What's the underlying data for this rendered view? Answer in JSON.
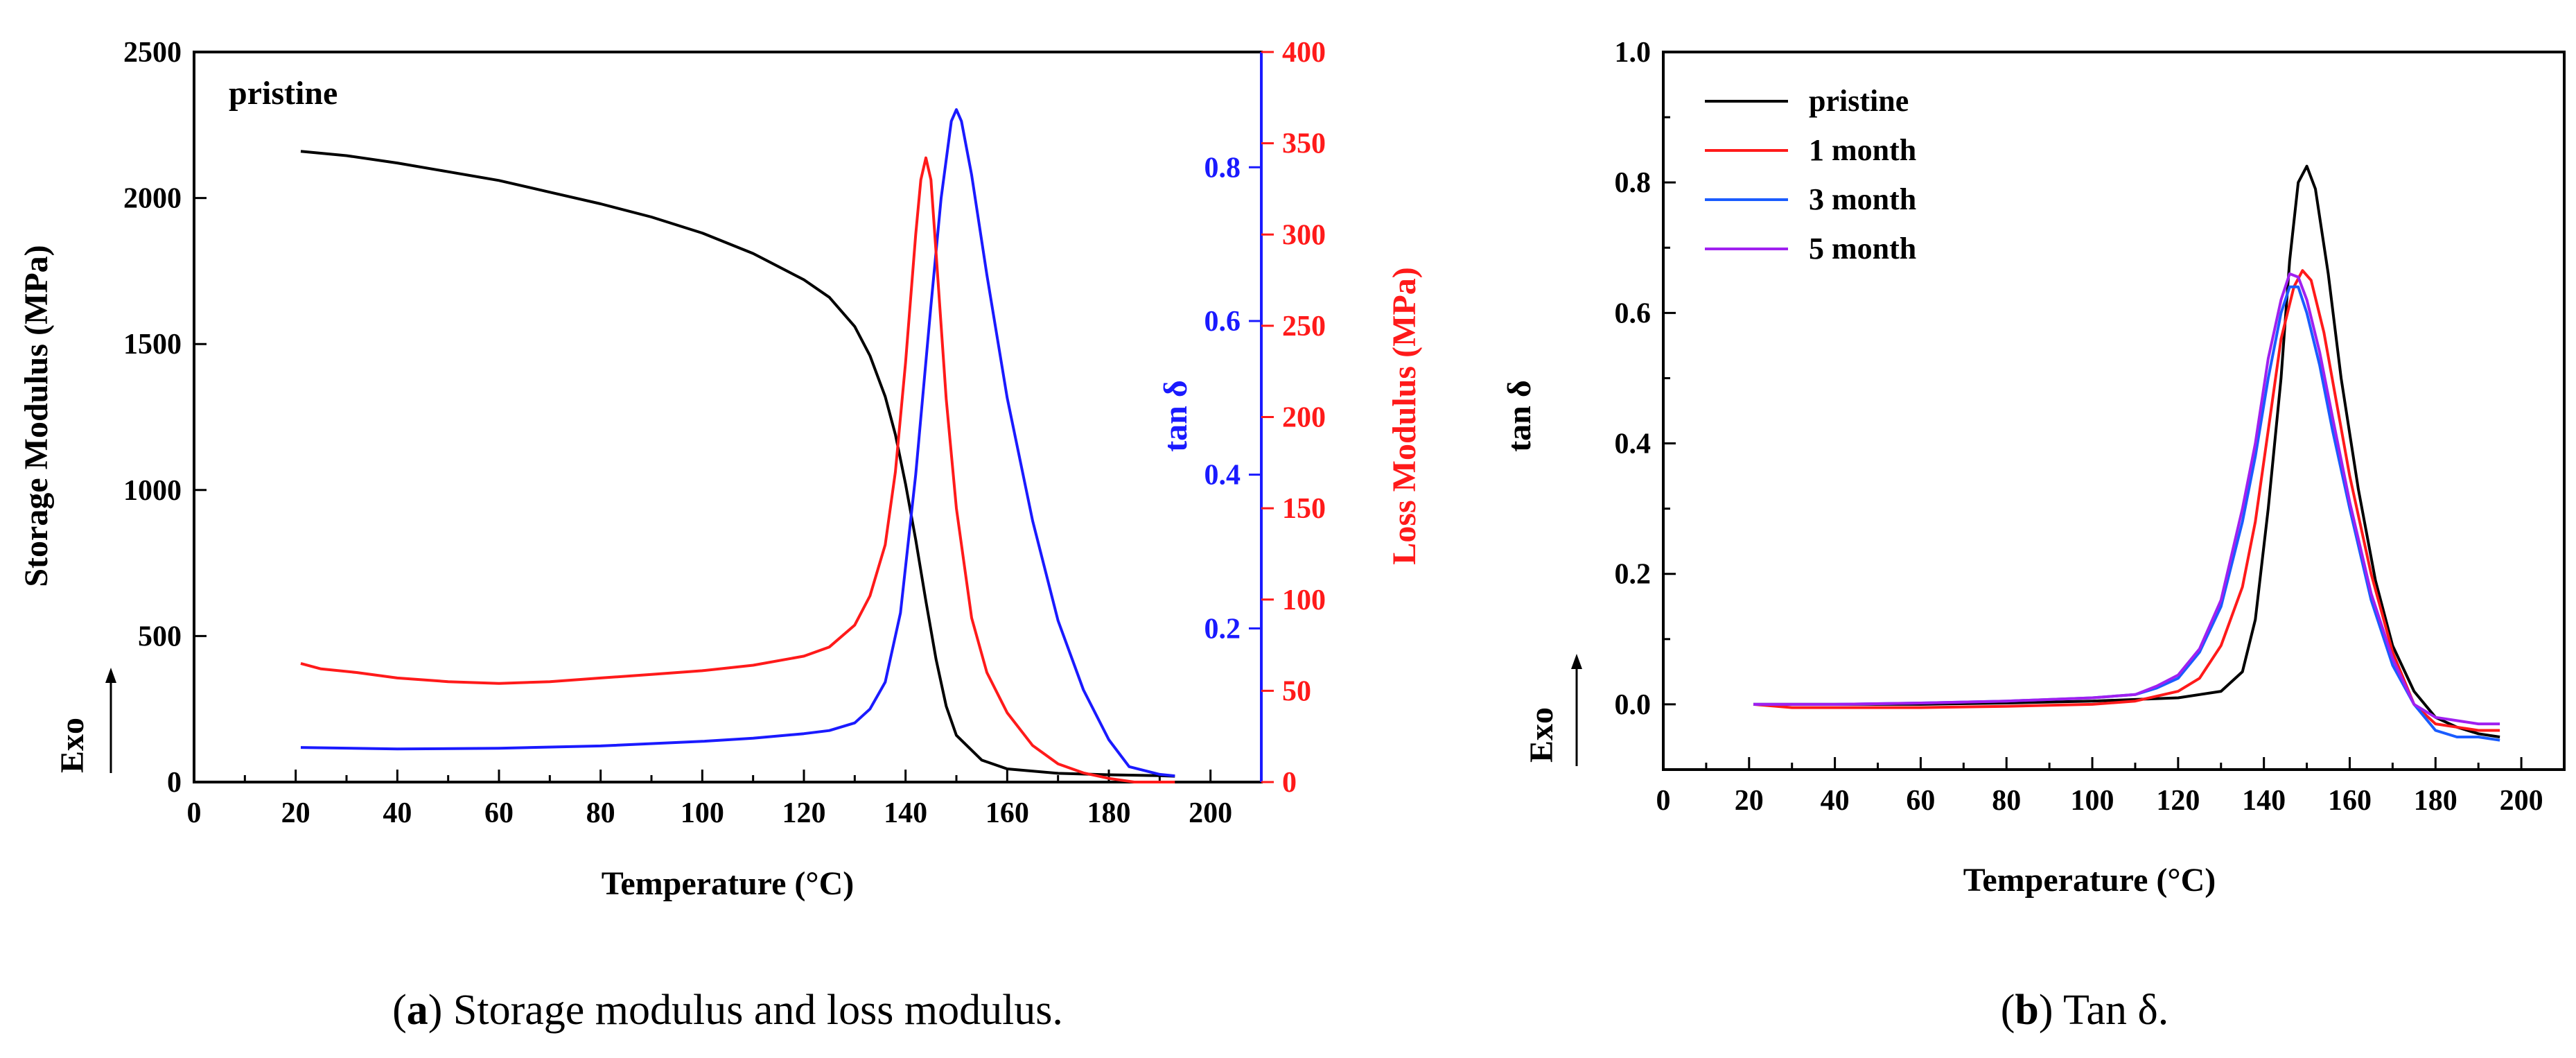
{
  "figure_captions": {
    "a": {
      "letter": "a",
      "text": "Storage modulus and loss modulus."
    },
    "b": {
      "letter": "b",
      "text": "Tan δ."
    }
  },
  "chart_data": [
    {
      "id": "a",
      "type": "line",
      "annotation": "pristine",
      "exo_label": "Exo",
      "xlabel": "Temperature (°C)",
      "ylabel_left": "Storage Modulus (MPa)",
      "ylabel_right_inner": "tan δ",
      "ylabel_right_outer": "Loss Modulus (MPa)",
      "xlim": [
        0,
        210
      ],
      "ylim_left": [
        0,
        2500
      ],
      "ylim_right_inner": [
        0,
        0.95
      ],
      "ylim_right_outer": [
        0,
        400
      ],
      "x_ticks": [
        "0",
        "20",
        "40",
        "60",
        "80",
        "100",
        "120",
        "140",
        "160",
        "180",
        "200"
      ],
      "y_left_ticks": [
        "0",
        "500",
        "1000",
        "1500",
        "2000",
        "2500"
      ],
      "y_tan_ticks": [
        "0.2",
        "0.4",
        "0.6",
        "0.8"
      ],
      "y_loss_ticks": [
        "0",
        "50",
        "100",
        "150",
        "200",
        "250",
        "300",
        "350",
        "400"
      ],
      "colors": {
        "storage": "#000000",
        "tan": "#1a1aff",
        "loss": "#ff1a1a"
      },
      "series": [
        {
          "key": "storage",
          "axis": "left",
          "x": [
            21,
            30,
            40,
            50,
            60,
            70,
            80,
            90,
            100,
            110,
            120,
            125,
            130,
            133,
            136,
            138,
            140,
            142,
            144,
            146,
            148,
            150,
            155,
            160,
            170,
            180,
            190,
            193
          ],
          "y": [
            2160,
            2145,
            2120,
            2090,
            2060,
            2020,
            1980,
            1935,
            1880,
            1810,
            1720,
            1660,
            1560,
            1460,
            1320,
            1190,
            1020,
            830,
            620,
            420,
            260,
            160,
            75,
            45,
            30,
            25,
            22,
            20
          ]
        },
        {
          "key": "tan",
          "axis": "right_inner",
          "x": [
            21,
            40,
            60,
            80,
            100,
            110,
            120,
            125,
            130,
            133,
            136,
            139,
            142,
            145,
            147,
            149,
            150,
            151,
            153,
            156,
            160,
            165,
            170,
            175,
            180,
            184,
            190,
            193
          ],
          "y": [
            0.045,
            0.043,
            0.044,
            0.047,
            0.053,
            0.057,
            0.063,
            0.067,
            0.077,
            0.095,
            0.13,
            0.22,
            0.4,
            0.62,
            0.76,
            0.86,
            0.875,
            0.86,
            0.79,
            0.66,
            0.5,
            0.34,
            0.21,
            0.12,
            0.055,
            0.02,
            0.01,
            0.008
          ]
        },
        {
          "key": "loss",
          "axis": "right_outer",
          "x": [
            21,
            25,
            32,
            40,
            50,
            60,
            70,
            80,
            90,
            100,
            110,
            120,
            125,
            130,
            133,
            136,
            138,
            140,
            142,
            143,
            144,
            145,
            146,
            148,
            150,
            153,
            156,
            160,
            165,
            170,
            175,
            180,
            185,
            190,
            193
          ],
          "y": [
            65,
            62,
            60,
            57,
            55,
            54,
            55,
            57,
            59,
            61,
            64,
            69,
            74,
            86,
            102,
            130,
            170,
            230,
            300,
            330,
            342,
            330,
            290,
            210,
            150,
            90,
            60,
            38,
            20,
            10,
            5,
            2,
            0,
            0,
            0
          ]
        }
      ]
    },
    {
      "id": "b",
      "type": "line",
      "exo_label": "Exo",
      "xlabel": "Temperature (°C)",
      "ylabel": "tan δ",
      "xlim": [
        0,
        210
      ],
      "ylim": [
        -0.1,
        1.0
      ],
      "x_ticks": [
        "0",
        "20",
        "40",
        "60",
        "80",
        "100",
        "120",
        "140",
        "160",
        "180",
        "200"
      ],
      "y_ticks": [
        "0.0",
        "0.2",
        "0.4",
        "0.6",
        "0.8",
        "1.0"
      ],
      "legend_position": "top-left",
      "series": [
        {
          "name": "pristine",
          "color": "#000000",
          "x": [
            21,
            40,
            60,
            80,
            100,
            120,
            130,
            135,
            138,
            141,
            144,
            146,
            148,
            150,
            152,
            155,
            158,
            162,
            166,
            170,
            175,
            180,
            185,
            190,
            195
          ],
          "y": [
            0.0,
            0.0,
            0.0,
            0.002,
            0.005,
            0.01,
            0.02,
            0.05,
            0.13,
            0.3,
            0.5,
            0.68,
            0.8,
            0.825,
            0.79,
            0.66,
            0.5,
            0.33,
            0.19,
            0.09,
            0.02,
            -0.02,
            -0.035,
            -0.045,
            -0.05
          ]
        },
        {
          "name": "1 month",
          "color": "#ff1a1a",
          "x": [
            21,
            30,
            40,
            60,
            80,
            100,
            110,
            120,
            125,
            130,
            135,
            138,
            141,
            144,
            147,
            149,
            151,
            154,
            157,
            160,
            165,
            170,
            175,
            180,
            185,
            190,
            195
          ],
          "y": [
            0.0,
            -0.005,
            -0.005,
            -0.005,
            -0.003,
            0.0,
            0.005,
            0.02,
            0.04,
            0.09,
            0.18,
            0.28,
            0.42,
            0.56,
            0.64,
            0.665,
            0.65,
            0.57,
            0.46,
            0.35,
            0.2,
            0.08,
            0.0,
            -0.03,
            -0.035,
            -0.04,
            -0.04
          ]
        },
        {
          "name": "3 month",
          "color": "#1a5cff",
          "x": [
            21,
            40,
            60,
            80,
            100,
            110,
            115,
            120,
            125,
            130,
            135,
            138,
            141,
            144,
            146,
            148,
            150,
            153,
            156,
            160,
            165,
            170,
            175,
            180,
            185,
            190,
            195
          ],
          "y": [
            0.0,
            0.0,
            0.002,
            0.005,
            0.01,
            0.015,
            0.025,
            0.04,
            0.08,
            0.15,
            0.28,
            0.38,
            0.5,
            0.6,
            0.64,
            0.64,
            0.6,
            0.52,
            0.42,
            0.3,
            0.16,
            0.06,
            0.0,
            -0.04,
            -0.05,
            -0.05,
            -0.055
          ]
        },
        {
          "name": "5 month",
          "color": "#a020f0",
          "x": [
            21,
            40,
            60,
            80,
            100,
            110,
            115,
            120,
            125,
            130,
            135,
            138,
            141,
            144,
            146,
            148,
            150,
            153,
            156,
            160,
            165,
            170,
            175,
            180,
            185,
            190,
            195
          ],
          "y": [
            0.0,
            0.0,
            0.002,
            0.005,
            0.01,
            0.015,
            0.028,
            0.045,
            0.085,
            0.16,
            0.3,
            0.4,
            0.53,
            0.62,
            0.66,
            0.655,
            0.62,
            0.54,
            0.44,
            0.31,
            0.17,
            0.07,
            0.0,
            -0.02,
            -0.025,
            -0.03,
            -0.03
          ]
        }
      ]
    }
  ]
}
